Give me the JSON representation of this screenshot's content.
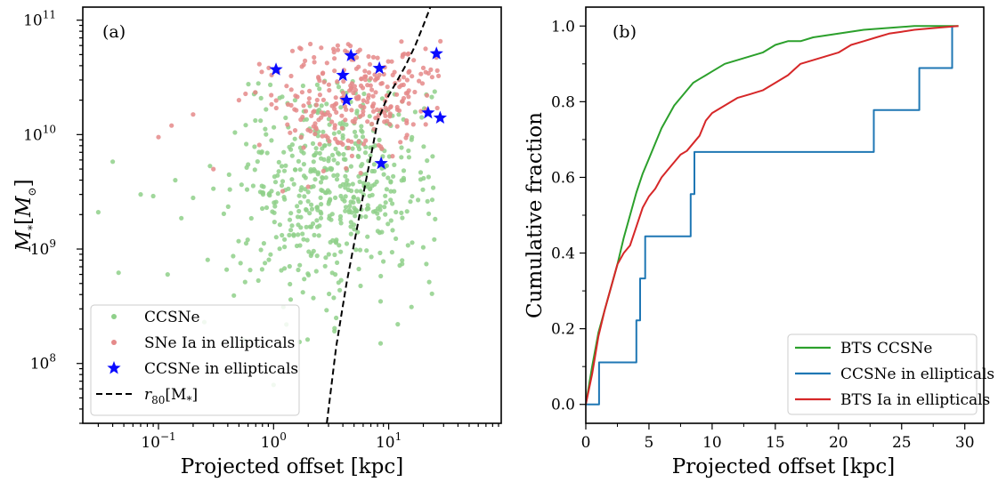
{
  "colors": {
    "ccsne_green": "#8fd08a",
    "ia_red": "#e58a8a",
    "star_blue": "#0a0aff",
    "line_green": "#2ca02c",
    "line_blue": "#1f77b4",
    "line_red": "#d62728"
  },
  "chart_data": [
    {
      "type": "scatter",
      "panel_label": "(a)",
      "xlabel": "Projected offset [kpc]",
      "ylabel": "M_*[M_⊙]",
      "x_scale": "log",
      "y_scale": "log",
      "xlim": [
        0.022,
        95
      ],
      "ylim": [
        30000000.0,
        130000000000.0
      ],
      "x_ticks": [
        {
          "value": 0.1,
          "base": "10",
          "exp": "−1"
        },
        {
          "value": 1,
          "base": "10",
          "exp": "0"
        },
        {
          "value": 10,
          "base": "10",
          "exp": "1"
        }
      ],
      "y_ticks": [
        {
          "value": 100000000.0,
          "base": "10",
          "exp": "8"
        },
        {
          "value": 1000000000.0,
          "base": "10",
          "exp": "9"
        },
        {
          "value": 10000000000.0,
          "base": "10",
          "exp": "10"
        },
        {
          "value": 100000000000.0,
          "base": "10",
          "exp": "11"
        }
      ],
      "legend": {
        "placement": "lower-left",
        "entries": [
          {
            "label": "CCSNe",
            "marker": "dot",
            "color": "#8fd08a"
          },
          {
            "label": "SNe Ia in ellipticals",
            "marker": "dot",
            "color": "#e58a8a"
          },
          {
            "label": "CCSNe in ellipticals",
            "marker": "star",
            "color": "#0a0aff"
          },
          {
            "label_main": "r",
            "label_sub": "80",
            "label_rest": "[M",
            "label_sub2": "*",
            "label_end": "]",
            "marker": "dashed",
            "color": "#000000"
          }
        ]
      },
      "series": [
        {
          "name": "CCSNe",
          "marker": "dot",
          "color": "#8fd08a",
          "generated": {
            "note": "cloud",
            "n": 560,
            "seed": 7,
            "logx_mean": 0.55,
            "logx_sd": 0.45,
            "logy_mean": 9.55,
            "logy_sd": 0.48,
            "logx_min": -1.55,
            "logx_max": 1.45,
            "logy_min": 7.9,
            "logy_max": 10.5
          },
          "points": [
            [
              0.03,
              2100000000.0
            ],
            [
              0.04,
              5800000000.0
            ],
            [
              0.045,
              620000000.0
            ],
            [
              0.07,
              3000000000.0
            ],
            [
              0.09,
              2900000000.0
            ],
            [
              0.14,
              4000000000.0
            ],
            [
              0.12,
              600000000.0
            ],
            [
              0.2,
              2800000000.0
            ],
            [
              0.25,
              230000000.0
            ],
            [
              0.55,
              160000000.0
            ],
            [
              1.0,
              65000000.0
            ],
            [
              8.5,
              150000000.0
            ],
            [
              12,
              220000000.0
            ],
            [
              3.5,
              250000000.0
            ]
          ]
        },
        {
          "name": "SNe Ia in ellipticals",
          "marker": "dot",
          "color": "#e58a8a",
          "generated": {
            "note": "cloud",
            "n": 300,
            "seed": 19,
            "logx_mean": 0.75,
            "logx_sd": 0.4,
            "logy_mean": 10.35,
            "logy_sd": 0.28,
            "logx_min": -1.0,
            "logx_max": 1.45,
            "logy_min": 9.5,
            "logy_max": 10.85
          },
          "points": [
            [
              0.1,
              9500000000.0
            ],
            [
              0.13,
              12000000000.0
            ],
            [
              0.2,
              15000000000.0
            ],
            [
              0.3,
              5000000000.0
            ],
            [
              0.5,
              20000000000.0
            ],
            [
              1.2,
              3200000000.0
            ],
            [
              2.0,
              3500000000.0
            ]
          ]
        },
        {
          "name": "CCSNe in ellipticals",
          "marker": "star",
          "color": "#0a0aff",
          "points": [
            [
              1.05,
              37000000000.0
            ],
            [
              4.0,
              33000000000.0
            ],
            [
              4.3,
              20000000000.0
            ],
            [
              4.7,
              49000000000.0
            ],
            [
              8.3,
              38000000000.0
            ],
            [
              8.6,
              5600000000.0
            ],
            [
              22.0,
              15500000000.0
            ],
            [
              26.0,
              51000000000.0
            ],
            [
              28.0,
              14000000000.0
            ]
          ]
        },
        {
          "name": "r80[M*]",
          "type": "line",
          "style": "dashed",
          "color": "#000000",
          "points": [
            [
              2.9,
              30000000.0
            ],
            [
              3.5,
              140000000.0
            ],
            [
              4.3,
              500000000.0
            ],
            [
              5.3,
              1500000000.0
            ],
            [
              6.3,
              3800000000.0
            ],
            [
              7.3,
              8000000000.0
            ],
            [
              8.0,
              13000000000.0
            ],
            [
              9.5,
              20000000000.0
            ],
            [
              11.5,
              28000000000.0
            ],
            [
              14.0,
              40000000000.0
            ],
            [
              17.0,
              60000000000.0
            ],
            [
              20.0,
              90000000000.0
            ],
            [
              23.0,
              130000000000.0
            ]
          ]
        }
      ]
    },
    {
      "type": "line",
      "panel_label": "(b)",
      "xlabel": "Projected offset [kpc]",
      "ylabel": "Cumulative fraction",
      "xlim": [
        0,
        31.5
      ],
      "ylim": [
        -0.05,
        1.05
      ],
      "x_ticks": [
        0,
        5,
        10,
        15,
        20,
        25,
        30
      ],
      "y_ticks": [
        0.0,
        0.2,
        0.4,
        0.6,
        0.8,
        1.0
      ],
      "y_tick_labels": [
        "0.0",
        "0.2",
        "0.4",
        "0.6",
        "0.8",
        "1.0"
      ],
      "legend": {
        "placement": "lower-right",
        "entries": [
          {
            "label": "BTS CCSNe",
            "color": "#2ca02c"
          },
          {
            "label": "CCSNe in ellipticals",
            "color": "#1f77b4"
          },
          {
            "label": "BTS Ia in ellipticals",
            "color": "#d62728"
          }
        ]
      },
      "series": [
        {
          "name": "BTS CCSNe",
          "color": "#2ca02c",
          "points": [
            [
              0,
              0
            ],
            [
              0.5,
              0.1
            ],
            [
              1,
              0.19
            ],
            [
              1.5,
              0.25
            ],
            [
              2,
              0.31
            ],
            [
              2.5,
              0.37
            ],
            [
              3,
              0.44
            ],
            [
              3.5,
              0.5
            ],
            [
              4,
              0.56
            ],
            [
              4.5,
              0.61
            ],
            [
              5,
              0.65
            ],
            [
              5.5,
              0.69
            ],
            [
              6,
              0.73
            ],
            [
              6.5,
              0.76
            ],
            [
              7,
              0.79
            ],
            [
              7.5,
              0.81
            ],
            [
              8,
              0.83
            ],
            [
              8.5,
              0.85
            ],
            [
              9,
              0.86
            ],
            [
              9.5,
              0.87
            ],
            [
              10,
              0.88
            ],
            [
              11,
              0.9
            ],
            [
              12,
              0.91
            ],
            [
              13,
              0.92
            ],
            [
              14,
              0.93
            ],
            [
              15,
              0.95
            ],
            [
              16,
              0.96
            ],
            [
              17,
              0.96
            ],
            [
              18,
              0.97
            ],
            [
              20,
              0.98
            ],
            [
              22,
              0.99
            ],
            [
              24,
              0.995
            ],
            [
              26,
              1.0
            ],
            [
              29.5,
              1.0
            ]
          ]
        },
        {
          "name": "CCSNe in ellipticals",
          "color": "#1f77b4",
          "step": true,
          "points": [
            [
              0,
              0
            ],
            [
              1.05,
              0
            ],
            [
              1.05,
              0.111
            ],
            [
              4.0,
              0.111
            ],
            [
              4.0,
              0.222
            ],
            [
              4.3,
              0.222
            ],
            [
              4.3,
              0.333
            ],
            [
              4.7,
              0.333
            ],
            [
              4.7,
              0.444
            ],
            [
              8.3,
              0.444
            ],
            [
              8.3,
              0.556
            ],
            [
              8.6,
              0.556
            ],
            [
              8.6,
              0.667
            ],
            [
              22.8,
              0.667
            ],
            [
              22.8,
              0.778
            ],
            [
              26.4,
              0.778
            ],
            [
              26.4,
              0.889
            ],
            [
              29.0,
              0.889
            ],
            [
              29.0,
              1.0
            ]
          ]
        },
        {
          "name": "BTS Ia in ellipticals",
          "color": "#d62728",
          "points": [
            [
              0,
              0
            ],
            [
              0.5,
              0.08
            ],
            [
              1,
              0.18
            ],
            [
              1.5,
              0.25
            ],
            [
              2,
              0.31
            ],
            [
              2.5,
              0.37
            ],
            [
              3,
              0.4
            ],
            [
              3.5,
              0.42
            ],
            [
              4,
              0.47
            ],
            [
              4.5,
              0.52
            ],
            [
              5,
              0.55
            ],
            [
              5.5,
              0.57
            ],
            [
              6,
              0.6
            ],
            [
              6.5,
              0.62
            ],
            [
              7,
              0.64
            ],
            [
              7.5,
              0.66
            ],
            [
              8,
              0.67
            ],
            [
              8.5,
              0.69
            ],
            [
              9,
              0.71
            ],
            [
              9.5,
              0.75
            ],
            [
              10,
              0.77
            ],
            [
              11,
              0.79
            ],
            [
              12,
              0.81
            ],
            [
              13,
              0.82
            ],
            [
              14,
              0.83
            ],
            [
              15,
              0.85
            ],
            [
              16,
              0.87
            ],
            [
              17,
              0.9
            ],
            [
              18,
              0.91
            ],
            [
              19,
              0.92
            ],
            [
              20,
              0.93
            ],
            [
              21,
              0.95
            ],
            [
              22,
              0.96
            ],
            [
              23,
              0.97
            ],
            [
              24,
              0.98
            ],
            [
              25,
              0.985
            ],
            [
              26,
              0.99
            ],
            [
              27,
              0.993
            ],
            [
              28,
              0.996
            ],
            [
              29.5,
              1.0
            ]
          ]
        }
      ]
    }
  ]
}
